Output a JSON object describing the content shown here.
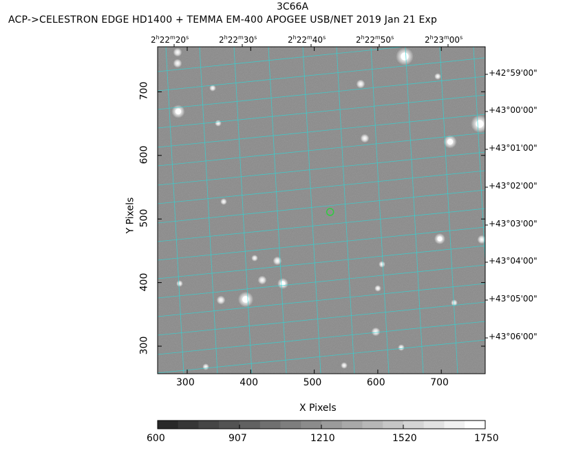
{
  "title": "3C66A",
  "subtitle": "ACP->CELESTRON EDGE HD1400 + TEMMA EM-400 APOGEE USB/NET   2019 Jan 21    Exp",
  "x_axis_label": "X Pixels",
  "y_axis_label": "Y Pixels",
  "x_ticks": [
    {
      "label": "300",
      "value": 300
    },
    {
      "label": "400",
      "value": 400
    },
    {
      "label": "500",
      "value": 500
    },
    {
      "label": "600",
      "value": 600
    },
    {
      "label": "700",
      "value": 700
    }
  ],
  "y_ticks": [
    {
      "label": "300",
      "value": 300
    },
    {
      "label": "400",
      "value": 400
    },
    {
      "label": "500",
      "value": 500
    },
    {
      "label": "600",
      "value": 600
    },
    {
      "label": "700",
      "value": 700
    }
  ],
  "ra_labels": [
    {
      "h": "2",
      "m": "22",
      "s": "20"
    },
    {
      "h": "2",
      "m": "22",
      "s": "30"
    },
    {
      "h": "2",
      "m": "22",
      "s": "40"
    },
    {
      "h": "2",
      "m": "22",
      "s": "50"
    },
    {
      "h": "2",
      "m": "23",
      "s": "00"
    }
  ],
  "dec_labels": [
    "+42°59'00\"",
    "+43°00'00\"",
    "+43°01'00\"",
    "+43°02'00\"",
    "+43°03'00\"",
    "+43°04'00\"",
    "+43°05'00\"",
    "+43°06'00\""
  ],
  "colorbar": {
    "labels": [
      "600",
      "907",
      "1210",
      "1520",
      "1750"
    ],
    "min": 600,
    "max": 1750
  },
  "colors": {
    "background_gray": "#8a8a8a",
    "grid": "#2ed6d6",
    "target_marker": "#2ecc40"
  },
  "target": {
    "x": 525,
    "y": 511
  }
}
